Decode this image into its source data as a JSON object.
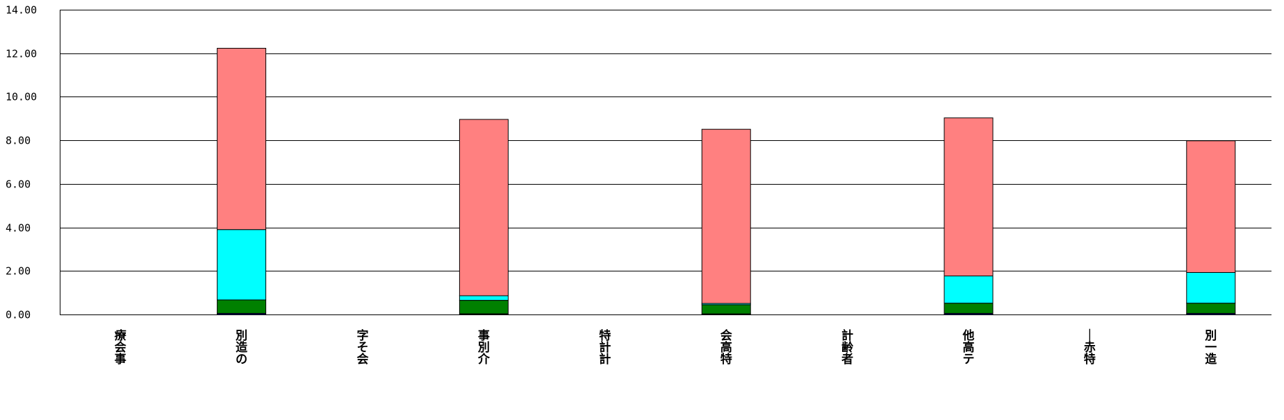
{
  "chart_data": {
    "type": "bar",
    "stacked": true,
    "title": "",
    "xlabel": "",
    "ylabel": "",
    "ylim": [
      0,
      14
    ],
    "yticks": [
      0,
      2,
      4,
      6,
      8,
      10,
      12,
      14
    ],
    "ytick_labels": [
      "0.00",
      "2.00",
      "4.00",
      "6.00",
      "8.00",
      "10.00",
      "12.00",
      "14.00"
    ],
    "grid": true,
    "legend": "none",
    "categories": [
      "療会事",
      "別造の",
      "字そ会",
      "事別介",
      "特計計",
      "会高特",
      "計齢者",
      "他高テ",
      "｜赤特",
      "別一造"
    ],
    "series": [
      {
        "color": "#0000c0",
        "values": [
          0,
          0.05,
          0,
          0.03,
          0,
          0.03,
          0,
          0.05,
          0,
          0.05
        ]
      },
      {
        "color": "#008000",
        "values": [
          0,
          0.62,
          0,
          0.62,
          0,
          0.42,
          0,
          0.47,
          0,
          0.47
        ]
      },
      {
        "color": "#00ffff",
        "values": [
          0,
          3.23,
          0,
          0.21,
          0,
          0.06,
          0,
          1.25,
          0,
          1.41
        ]
      },
      {
        "color": "#ff8080",
        "values": [
          0,
          8.33,
          0,
          8.1,
          0,
          8.0,
          0,
          7.26,
          0,
          6.05
        ]
      }
    ]
  }
}
